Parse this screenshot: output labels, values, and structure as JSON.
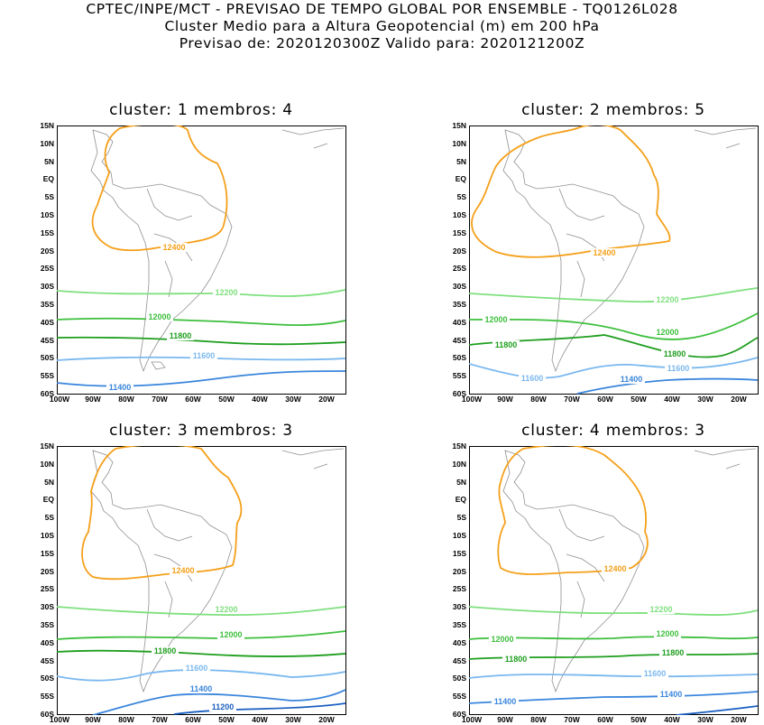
{
  "header": {
    "line1": "CPTEC/INPE/MCT - PREVISAO DE TEMPO GLOBAL POR ENSEMBLE - TQ0126L028",
    "line2": "Cluster Medio para a Altura Geopotencial (m) em 200 hPa",
    "line3": "Previsao de: 2020120300Z    Valido para: 2020121200Z"
  },
  "axes": {
    "lat_labels": [
      "15N",
      "10N",
      "5N",
      "EQ",
      "5S",
      "10S",
      "15S",
      "20S",
      "25S",
      "30S",
      "35S",
      "40S",
      "45S",
      "50S",
      "55S",
      "60S"
    ],
    "lon_labels": [
      "100W",
      "90W",
      "80W",
      "70W",
      "60W",
      "50W",
      "40W",
      "30W",
      "20W"
    ]
  },
  "colors": {
    "c12400": "#f5a01a",
    "c12200": "#7fe07f",
    "c12000": "#3dbf3d",
    "c11800": "#1e9e1e",
    "c11600": "#7ab8ef",
    "c11400": "#3a86dc",
    "c11200": "#1a5fc0",
    "land": "#909090"
  },
  "panels": [
    {
      "title": "cluster: 1   membros: 4",
      "contours": [
        {
          "label": "12400",
          "level": 12400
        },
        {
          "label": "12200",
          "level": 12200
        },
        {
          "label": "12000",
          "level": 12000
        },
        {
          "label": "11800",
          "level": 11800
        },
        {
          "label": "11600",
          "level": 11600
        },
        {
          "label": "11400",
          "level": 11400
        }
      ]
    },
    {
      "title": "cluster: 2   membros: 5",
      "contours": [
        {
          "label": "12400",
          "level": 12400
        },
        {
          "label": "12200",
          "level": 12200
        },
        {
          "label": "12000",
          "level": 12000
        },
        {
          "label": "12000",
          "level": 12000
        },
        {
          "label": "11800",
          "level": 11800
        },
        {
          "label": "11800",
          "level": 11800
        },
        {
          "label": "11600",
          "level": 11600
        },
        {
          "label": "11600",
          "level": 11600
        },
        {
          "label": "11400",
          "level": 11400
        }
      ]
    },
    {
      "title": "cluster: 3   membros: 3",
      "contours": [
        {
          "label": "12400",
          "level": 12400
        },
        {
          "label": "12200",
          "level": 12200
        },
        {
          "label": "12000",
          "level": 12000
        },
        {
          "label": "11800",
          "level": 11800
        },
        {
          "label": "11600",
          "level": 11600
        },
        {
          "label": "11400",
          "level": 11400
        },
        {
          "label": "11200",
          "level": 11200
        }
      ]
    },
    {
      "title": "cluster: 4   membros: 3",
      "contours": [
        {
          "label": "12400",
          "level": 12400
        },
        {
          "label": "12200",
          "level": 12200
        },
        {
          "label": "12000",
          "level": 12000
        },
        {
          "label": "12000",
          "level": 12000
        },
        {
          "label": "11800",
          "level": 11800
        },
        {
          "label": "11800",
          "level": 11800
        },
        {
          "label": "11600",
          "level": 11600
        },
        {
          "label": "11400",
          "level": 11400
        },
        {
          "label": "11400",
          "level": 11400
        }
      ]
    }
  ]
}
